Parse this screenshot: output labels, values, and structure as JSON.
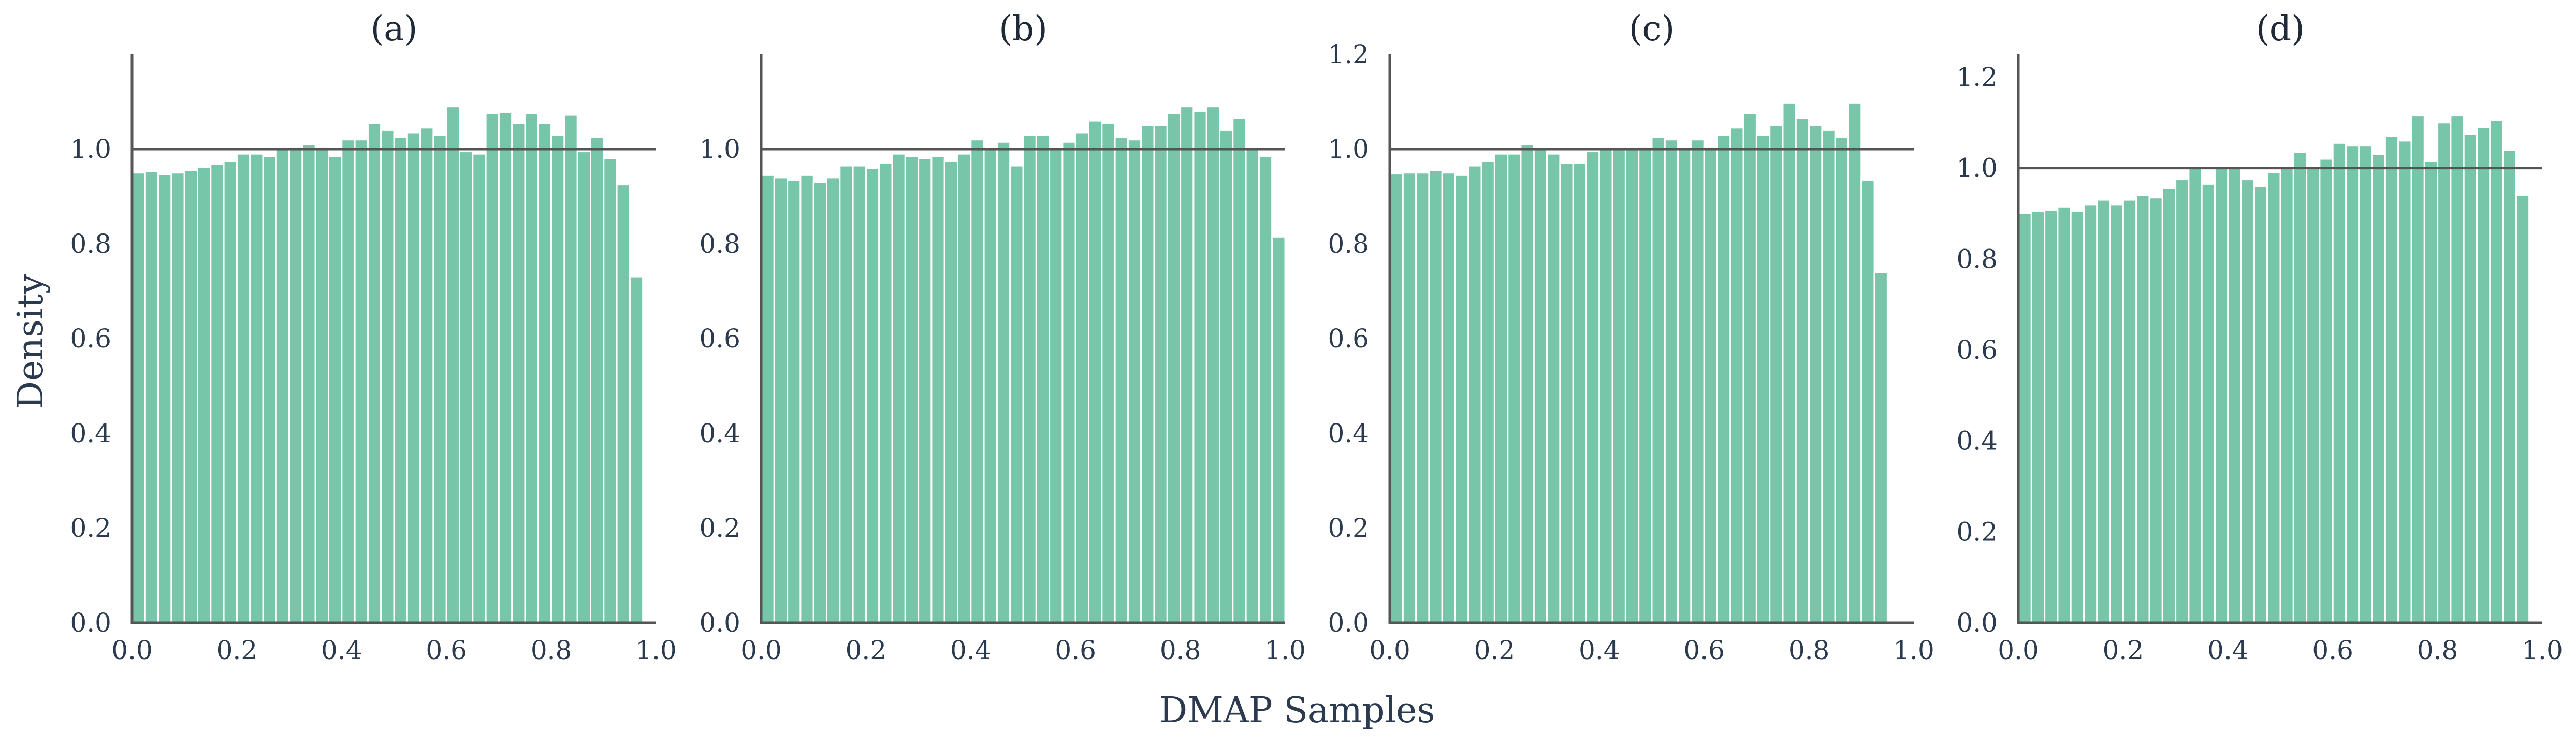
{
  "figure": {
    "xlabel": "DMAP Samples",
    "ylabel": "Density"
  },
  "colors": {
    "bar": "#78c6aa",
    "axis": "#555555",
    "text": "#2b3a4e"
  },
  "chart_data": [
    {
      "type": "bar",
      "title": "(a)",
      "xlim": [
        0.0,
        1.0
      ],
      "ylim": [
        0.0,
        1.2
      ],
      "xticks": [
        "0.0",
        "0.2",
        "0.4",
        "0.6",
        "0.8",
        "1.0"
      ],
      "yticks": [
        "0.0",
        "0.2",
        "0.4",
        "0.6",
        "0.8",
        "1.0"
      ],
      "reference_line_y": 1.0,
      "bin_width": 0.025,
      "values": [
        0.95,
        0.953,
        0.947,
        0.95,
        0.955,
        0.962,
        0.968,
        0.975,
        0.99,
        0.99,
        0.985,
        1.0,
        1.005,
        1.01,
        1.005,
        0.985,
        1.02,
        1.02,
        1.055,
        1.04,
        1.025,
        1.035,
        1.045,
        1.03,
        1.09,
        0.995,
        0.99,
        1.075,
        1.078,
        1.055,
        1.075,
        1.055,
        1.03,
        1.072,
        0.995,
        1.025,
        0.98,
        0.925,
        0.73
      ]
    },
    {
      "type": "bar",
      "title": "(b)",
      "xlim": [
        0.0,
        1.0
      ],
      "ylim": [
        0.0,
        1.2
      ],
      "xticks": [
        "0.0",
        "0.2",
        "0.4",
        "0.6",
        "0.8",
        "1.0"
      ],
      "yticks": [
        "0.0",
        "0.2",
        "0.4",
        "0.6",
        "0.8",
        "1.0"
      ],
      "reference_line_y": 1.0,
      "bin_width": 0.025,
      "values": [
        0.945,
        0.94,
        0.935,
        0.945,
        0.93,
        0.94,
        0.965,
        0.965,
        0.96,
        0.97,
        0.99,
        0.985,
        0.98,
        0.985,
        0.975,
        0.99,
        1.02,
        1.0,
        1.015,
        0.965,
        1.03,
        1.03,
        1.0,
        1.015,
        1.035,
        1.06,
        1.055,
        1.025,
        1.02,
        1.05,
        1.05,
        1.075,
        1.09,
        1.08,
        1.09,
        1.04,
        1.065,
        1.0,
        0.985,
        0.815
      ]
    },
    {
      "type": "bar",
      "title": "(c)",
      "xlim": [
        0.0,
        1.0
      ],
      "ylim": [
        0.0,
        1.2
      ],
      "xticks": [
        "0.0",
        "0.2",
        "0.4",
        "0.6",
        "0.8",
        "1.0"
      ],
      "yticks": [
        "0.0",
        "0.2",
        "0.4",
        "0.6",
        "0.8",
        "1.0",
        "1.2"
      ],
      "reference_line_y": 1.0,
      "bin_width": 0.025,
      "values": [
        0.948,
        0.95,
        0.95,
        0.955,
        0.95,
        0.945,
        0.965,
        0.975,
        0.99,
        0.99,
        1.01,
        1.0,
        0.99,
        0.97,
        0.97,
        0.995,
        1.0,
        1.0,
        1.0,
        1.005,
        1.025,
        1.02,
        1.0,
        1.02,
        1.005,
        1.03,
        1.045,
        1.075,
        1.03,
        1.05,
        1.098,
        1.065,
        1.05,
        1.04,
        1.025,
        1.098,
        0.935,
        0.74
      ]
    },
    {
      "type": "bar",
      "title": "(d)",
      "xlim": [
        0.0,
        1.0
      ],
      "ylim": [
        0.0,
        1.25
      ],
      "xticks": [
        "0.0",
        "0.2",
        "0.4",
        "0.6",
        "0.8",
        "1.0"
      ],
      "yticks": [
        "0.0",
        "0.2",
        "0.4",
        "0.6",
        "0.8",
        "1.0",
        "1.2"
      ],
      "reference_line_y": 1.0,
      "bin_width": 0.025,
      "values": [
        0.9,
        0.905,
        0.908,
        0.915,
        0.905,
        0.92,
        0.93,
        0.92,
        0.93,
        0.94,
        0.935,
        0.955,
        0.975,
        1.0,
        0.965,
        1.0,
        1.0,
        0.975,
        0.96,
        0.99,
        1.0,
        1.035,
        1.0,
        1.02,
        1.055,
        1.05,
        1.05,
        1.03,
        1.07,
        1.06,
        1.115,
        1.015,
        1.1,
        1.115,
        1.075,
        1.09,
        1.105,
        1.04,
        0.94
      ]
    }
  ]
}
